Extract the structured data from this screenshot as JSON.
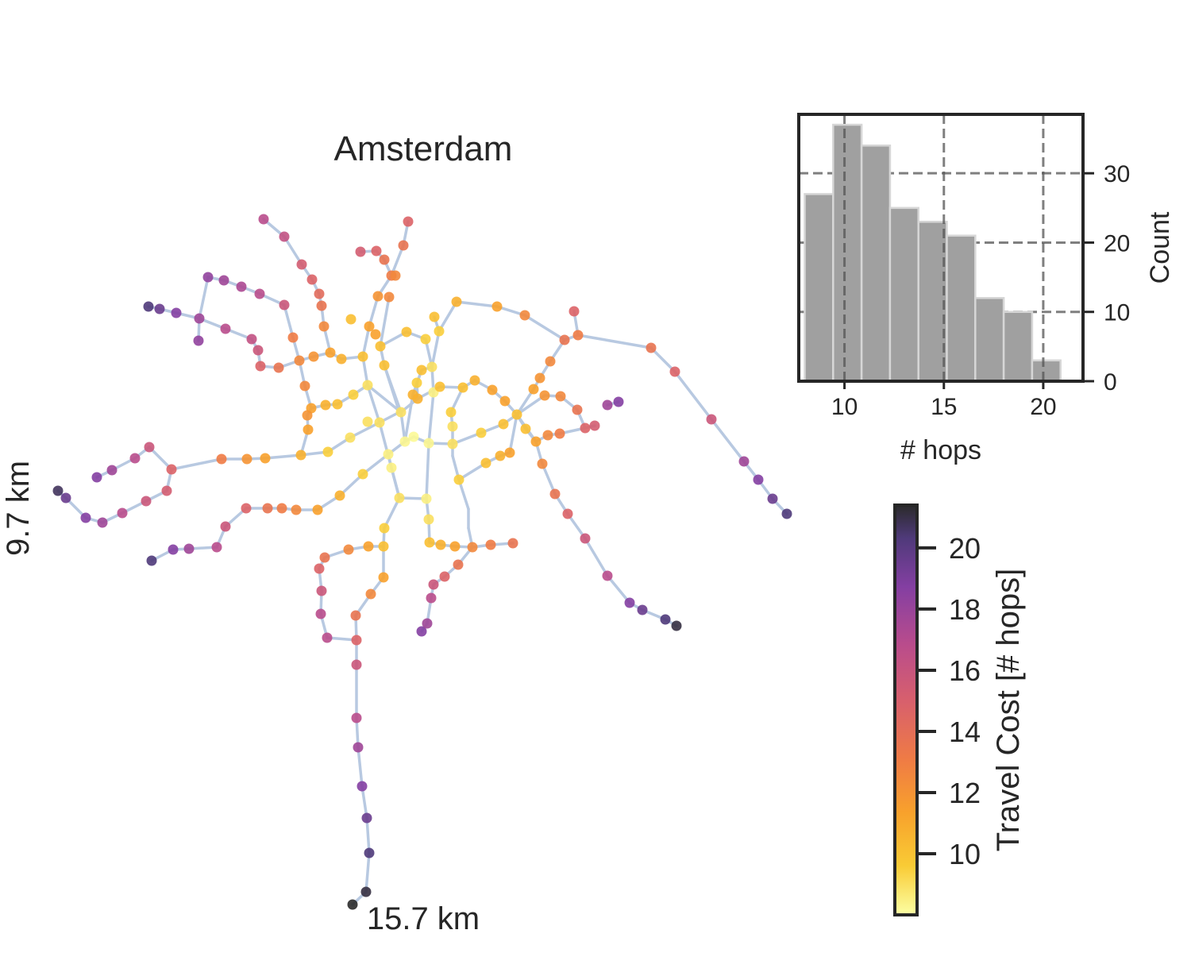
{
  "chart_data": [
    {
      "type": "network-map",
      "title": "Amsterdam",
      "xlabel": "15.7 km",
      "ylabel": "9.7 km",
      "node_color_by": "travel_cost_hops",
      "edge_color": "#b8c9e1",
      "colormap": "inferno_r (yellow → orange → red → purple → dark)"
    },
    {
      "type": "bar",
      "subtype": "histogram",
      "xlabel": "# hops",
      "ylabel": "Count",
      "xticks": [
        10,
        15,
        20
      ],
      "yticks": [
        0,
        10,
        20,
        30
      ],
      "xlim": [
        7.7,
        22.0
      ],
      "ylim": [
        0,
        38.5
      ],
      "bin_edges": [
        8.0,
        9.43,
        10.86,
        12.29,
        13.72,
        15.15,
        16.58,
        18.01,
        19.44,
        20.87
      ],
      "values": [
        27,
        37,
        34,
        25,
        23,
        21,
        12,
        10,
        3
      ],
      "bar_color": "#a0a0a0",
      "grid": "dashed",
      "y_axis_side": "right"
    },
    {
      "type": "colorbar",
      "label": "Travel Cost [# hops]",
      "ticks": [
        10,
        12,
        14,
        16,
        18,
        20
      ],
      "range": [
        8,
        21.4
      ],
      "colormap": "inferno_r"
    }
  ]
}
